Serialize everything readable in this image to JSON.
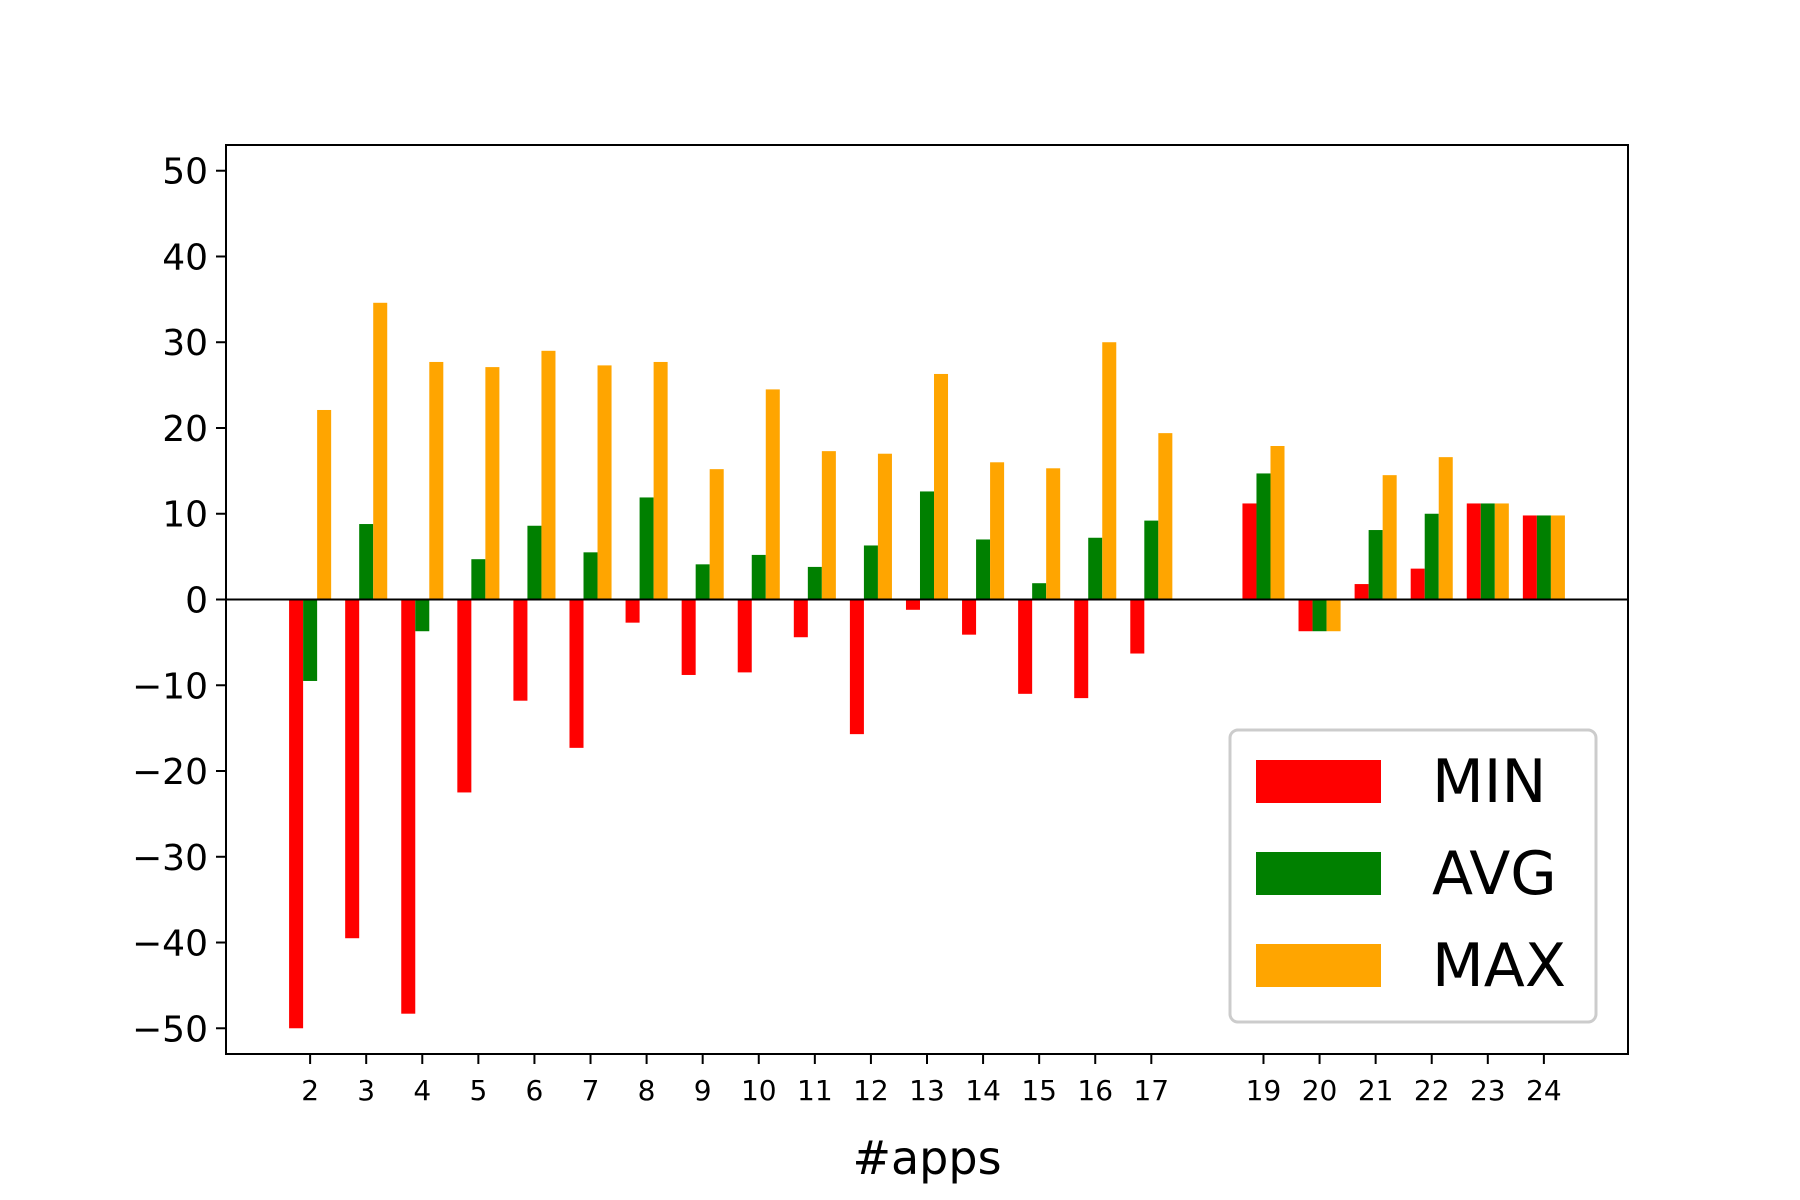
{
  "chart_data": {
    "type": "bar",
    "title": "",
    "xlabel": "#apps",
    "ylabel": "",
    "ylim": [
      -53,
      53
    ],
    "yticks": [
      -50,
      -40,
      -30,
      -20,
      -10,
      0,
      10,
      20,
      30,
      40,
      50
    ],
    "ytick_labels": [
      "−50",
      "−40",
      "−30",
      "−20",
      "−10",
      "0",
      "10",
      "20",
      "30",
      "40",
      "50"
    ],
    "categories": [
      "2",
      "3",
      "4",
      "5",
      "6",
      "7",
      "8",
      "9",
      "10",
      "11",
      "12",
      "13",
      "14",
      "15",
      "16",
      "17",
      "19",
      "20",
      "21",
      "22",
      "23",
      "24"
    ],
    "x": [
      2,
      3,
      4,
      5,
      6,
      7,
      8,
      9,
      10,
      11,
      12,
      13,
      14,
      15,
      16,
      17,
      19,
      20,
      21,
      22,
      23,
      24
    ],
    "series": [
      {
        "name": "MIN",
        "color": "#ff0000",
        "values": [
          -50,
          -39.5,
          -48.3,
          -22.5,
          -11.8,
          -17.3,
          -2.7,
          -8.8,
          -8.5,
          -4.4,
          -15.7,
          -1.2,
          -4.1,
          -11,
          -11.5,
          -6.3,
          11.2,
          -3.7,
          1.8,
          3.6,
          11.2,
          9.8
        ]
      },
      {
        "name": "AVG",
        "color": "#008000",
        "values": [
          -9.5,
          8.8,
          -3.7,
          4.7,
          8.6,
          5.5,
          11.9,
          4.1,
          5.2,
          3.8,
          6.3,
          12.6,
          7.0,
          1.9,
          7.2,
          9.2,
          14.7,
          -3.7,
          8.1,
          10.0,
          11.2,
          9.8
        ]
      },
      {
        "name": "MAX",
        "color": "#ffa500",
        "values": [
          22.1,
          34.6,
          27.7,
          27.1,
          29.0,
          27.3,
          27.7,
          15.2,
          24.5,
          17.3,
          17.0,
          26.3,
          16.0,
          15.3,
          30.0,
          19.4,
          17.9,
          -3.7,
          14.5,
          16.6,
          11.2,
          9.8
        ]
      }
    ],
    "legend_position": "bottom-right",
    "grid": false
  }
}
